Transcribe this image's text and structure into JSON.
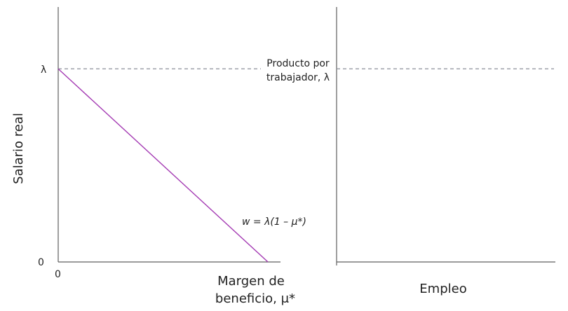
{
  "chart_data": [
    {
      "type": "line",
      "xlabel": [
        "Margen de",
        "beneficio, μ*"
      ],
      "ylabel": "Salario real",
      "x_ticks": [
        "0"
      ],
      "y_ticks": [
        "0",
        "λ"
      ],
      "x": [
        0,
        1
      ],
      "series": [
        {
          "name": "w = λ(1 – μ*)",
          "values": [
            1,
            0
          ],
          "color": "#a43ab3"
        }
      ],
      "reference_line": {
        "value": 1,
        "label": [
          "Producto por",
          "trabajador, λ"
        ],
        "style": "dashed",
        "color": "#8a8f99"
      },
      "xlim": [
        0,
        1.06
      ],
      "ylim": [
        0,
        1.32
      ],
      "grid": false
    },
    {
      "type": "line",
      "xlabel": "Empleo",
      "reference_line": {
        "value": 1,
        "style": "dashed",
        "color": "#8a8f99"
      },
      "grid": false
    }
  ]
}
